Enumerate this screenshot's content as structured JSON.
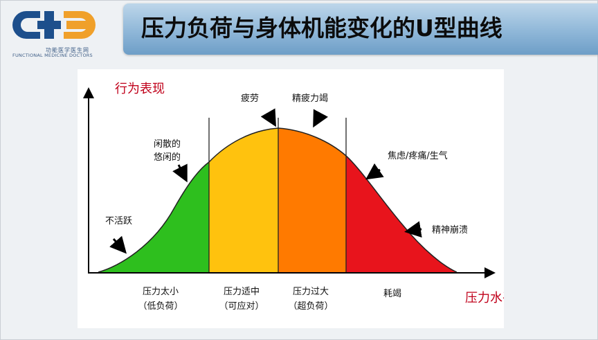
{
  "logo": {
    "cn_text": "功能医学医生网",
    "en_text": "FUNCTIONAL MEDICINE DOCTORS",
    "colors": {
      "blue": "#1d4f8c",
      "orange": "#f0a02a"
    }
  },
  "title": "压力负荷与身体机能变化的U型曲线",
  "diagram": {
    "y_axis_label": "行为表现",
    "x_axis_label": "压力水平",
    "zones": [
      {
        "name": "zone-low",
        "label_line1": "压力太小",
        "label_line2": "（低负荷）",
        "color": "#2ebf1e"
      },
      {
        "name": "zone-moderate",
        "label_line1": "压力适中",
        "label_line2": "（可应对）",
        "color": "#ffc20e"
      },
      {
        "name": "zone-high",
        "label_line1": "压力过大",
        "label_line2": "（超负荷）",
        "color": "#ff7a00"
      },
      {
        "name": "zone-exhaustion",
        "label_line1": "耗竭",
        "label_line2": "",
        "color": "#e8141c"
      }
    ],
    "annotations": [
      {
        "name": "annotation-inactive",
        "lines": [
          "不活跃"
        ]
      },
      {
        "name": "annotation-idle",
        "lines": [
          "闲散的",
          "悠闲的"
        ]
      },
      {
        "name": "annotation-fatigue",
        "lines": [
          "疲劳"
        ]
      },
      {
        "name": "annotation-exhausted",
        "lines": [
          "精疲力竭"
        ]
      },
      {
        "name": "annotation-anxiety",
        "lines": [
          "焦虑/疼痛/生气"
        ]
      },
      {
        "name": "annotation-breakdown",
        "lines": [
          "精神崩溃"
        ]
      }
    ]
  }
}
